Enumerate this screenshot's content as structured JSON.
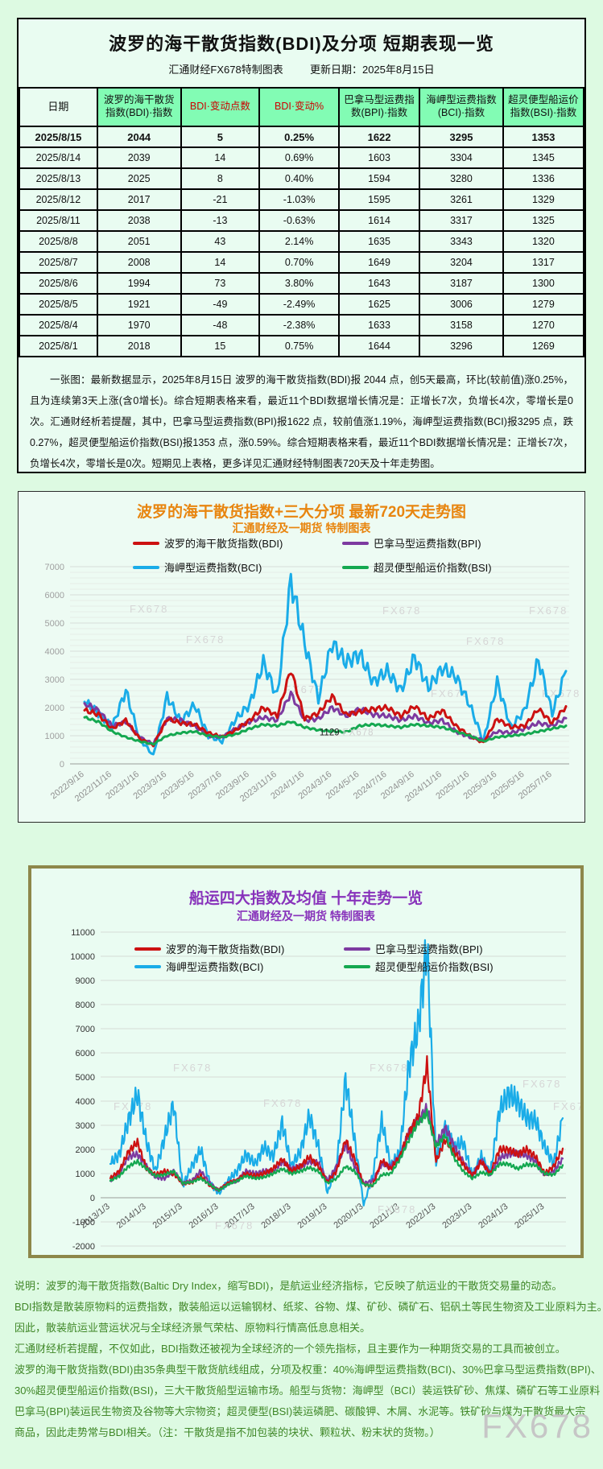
{
  "colors": {
    "page_bg": "#ddfae2",
    "panel_bg": "#e9fcf1",
    "header_green": "#82fcb4",
    "red_text": "#cc0000",
    "orange_title": "#e8850f",
    "purple_title": "#8833bb",
    "olive_border": "#8d874a",
    "footer_green": "#3f8727",
    "bdi": "#cc1111",
    "bpi": "#7d3aa0",
    "bci": "#1aace8",
    "bsi": "#14a850"
  },
  "report": {
    "title": "波罗的海干散货指数(BDI)及分项 短期表现一览",
    "source_label": "汇通财经FX678特制图表",
    "update_label": "更新日期：2025年8月15日",
    "table": {
      "headers": [
        "日期",
        "波罗的海干散货指数(BDI)·指数",
        "BDI·变动点数",
        "BDI·变动%",
        "巴拿马型运费指数(BPI)·指数",
        "海岬型运费指数(BCI)·指数",
        "超灵便型船运价指数(BSI)·指数"
      ],
      "red_header_indices": [
        2,
        3
      ],
      "rows": [
        [
          "2025/8/15",
          "2044",
          "5",
          "0.25%",
          "1622",
          "3295",
          "1353"
        ],
        [
          "2025/8/14",
          "2039",
          "14",
          "0.69%",
          "1603",
          "3304",
          "1345"
        ],
        [
          "2025/8/13",
          "2025",
          "8",
          "0.40%",
          "1594",
          "3280",
          "1336"
        ],
        [
          "2025/8/12",
          "2017",
          "-21",
          "-1.03%",
          "1595",
          "3261",
          "1329"
        ],
        [
          "2025/8/11",
          "2038",
          "-13",
          "-0.63%",
          "1614",
          "3317",
          "1325"
        ],
        [
          "2025/8/8",
          "2051",
          "43",
          "2.14%",
          "1635",
          "3343",
          "1320"
        ],
        [
          "2025/8/7",
          "2008",
          "14",
          "0.70%",
          "1649",
          "3204",
          "1317"
        ],
        [
          "2025/8/6",
          "1994",
          "73",
          "3.80%",
          "1643",
          "3187",
          "1300"
        ],
        [
          "2025/8/5",
          "1921",
          "-49",
          "-2.49%",
          "1625",
          "3006",
          "1279"
        ],
        [
          "2025/8/4",
          "1970",
          "-48",
          "-2.38%",
          "1633",
          "3158",
          "1270"
        ],
        [
          "2025/8/1",
          "2018",
          "15",
          "0.75%",
          "1644",
          "3296",
          "1269"
        ]
      ]
    },
    "summary": "一张图：最新数据显示，2025年8月15日 波罗的海干散货指数(BDI)报 2044 点，创5天最高，环比(较前值)涨0.25%，且为连续第3天上涨(含0增长)。综合短期表格来看，最近11个BDI数据增长情况是：正增长7次，负增长4次，零增长是0次。汇通财经析若提醒，其中，巴拿马型运费指数(BPI)报1622 点，较前值涨1.19%，海岬型运费指数(BCI)报3295 点，跌0.27%，超灵便型船运价指数(BSI)报1353 点，涨0.59%。综合短期表格来看，最近11个BDI数据增长情况是：正增长7次，负增长4次，零增长是0次。短期见上表格，更多详见汇通财经特制图表720天及十年走势图。"
  },
  "chart_data": [
    {
      "type": "line",
      "id": "chart720",
      "title": "波罗的海干散货指数+三大分项  最新720天走势图",
      "subtitle": "汇通财经及一期货 特制图表",
      "ylim": [
        0,
        7000
      ],
      "y_step": 1000,
      "grid": true,
      "legend_position": "top-inside",
      "watermark": "FX678",
      "x_tick_labels": [
        "2022/9/16",
        "2022/11/16",
        "2023/1/16",
        "2023/3/16",
        "2023/5/16",
        "2023/7/16",
        "2023/9/16",
        "2023/11/16",
        "2024/1/16",
        "2024/3/16",
        "2024/5/16",
        "2024/7/16",
        "2024/9/16",
        "2024/11/16",
        "2025/1/16",
        "2025/3/16",
        "2025/5/16",
        "2025/7/16"
      ],
      "tick_every": 2,
      "annotation": {
        "label": "1129",
        "series": "超灵便型船运价指数(BSI)",
        "index": 19,
        "value": 1129
      },
      "series": [
        {
          "name": "波罗的海干散货指数(BDI)",
          "color_key": "bdi",
          "values": [
            1900,
            1760,
            1250,
            1550,
            900,
            650,
            1600,
            1450,
            1400,
            1100,
            950,
            1200,
            1550,
            2000,
            1700,
            3350,
            1600,
            1800,
            2400,
            1750,
            1850,
            1950,
            2000,
            1700,
            2050,
            1600,
            1900,
            1350,
            1000,
            750,
            1600,
            1300,
            1350,
            1950,
            1450,
            2044
          ]
        },
        {
          "name": "巴拿马型运费指数(BPI)",
          "color_key": "bpi",
          "values": [
            2150,
            1900,
            1350,
            1500,
            950,
            700,
            1600,
            1550,
            1350,
            1000,
            950,
            1250,
            1500,
            1650,
            1550,
            2500,
            1550,
            1600,
            2000,
            1700,
            1950,
            1750,
            1700,
            1550,
            1700,
            1450,
            1550,
            1150,
            950,
            850,
            1150,
            1100,
            1250,
            1450,
            1350,
            1622
          ]
        },
        {
          "name": "海岬型运费指数(BCI)",
          "color_key": "bci",
          "values": [
            2200,
            1800,
            1300,
            2600,
            900,
            300,
            2400,
            1500,
            2100,
            1000,
            800,
            1600,
            2100,
            3600,
            2400,
            6500,
            4300,
            2300,
            4300,
            3600,
            3900,
            2900,
            3300,
            2600,
            3800,
            2700,
            3400,
            3100,
            2100,
            800,
            2900,
            1300,
            1900,
            3700,
            1800,
            3295
          ]
        },
        {
          "name": "超灵便型船运价指数(BSI)",
          "color_key": "bsi",
          "values": [
            1650,
            1500,
            1150,
            950,
            800,
            700,
            1000,
            1100,
            1150,
            1000,
            950,
            1050,
            1250,
            1400,
            1350,
            1500,
            1300,
            1200,
            1160,
            1129,
            1350,
            1400,
            1350,
            1300,
            1400,
            1350,
            1300,
            1150,
            1000,
            800,
            950,
            1000,
            1050,
            1150,
            1250,
            1353
          ]
        }
      ]
    },
    {
      "type": "line",
      "id": "chart10y",
      "title": "船运四大指数及均值 十年走势一览",
      "subtitle": "汇通财经及一期货 特制图表",
      "ylim": [
        -2000,
        11000
      ],
      "y_step": 1000,
      "grid": true,
      "legend_position": "top-inside",
      "watermark": "FX678",
      "x_tick_labels": [
        "2013/1/3",
        "2014/1/3",
        "2015/1/3",
        "2016/1/3",
        "2017/1/3",
        "2018/1/3",
        "2019/1/3",
        "2020/1/3",
        "2021/1/3",
        "2022/1/3",
        "2023/1/3",
        "2024/1/3",
        "2025/1/3"
      ],
      "tick_every": 4,
      "series": [
        {
          "name": "波罗的海干散货指数(BDI)",
          "color_key": "bdi",
          "values": [
            800,
            1100,
            1900,
            2300,
            1200,
            950,
            1100,
            1000,
            600,
            630,
            900,
            500,
            320,
            600,
            720,
            1000,
            900,
            1000,
            1200,
            1600,
            1100,
            1300,
            1700,
            1300,
            650,
            1100,
            2400,
            1600,
            550,
            500,
            1550,
            1200,
            1700,
            2700,
            3300,
            5500,
            1500,
            2400,
            1900,
            1400,
            900,
            1500,
            1000,
            2000,
            2000,
            1800,
            2000,
            1700,
            1000,
            1300,
            2044
          ]
        },
        {
          "name": "巴拿马型运费指数(BPI)",
          "color_key": "bpi",
          "values": [
            700,
            1050,
            1700,
            1800,
            1300,
            850,
            800,
            1100,
            600,
            700,
            1100,
            600,
            300,
            600,
            700,
            1100,
            1000,
            1100,
            1100,
            1500,
            1200,
            1300,
            1500,
            1450,
            700,
            1300,
            2200,
            1300,
            600,
            700,
            1400,
            1300,
            1700,
            2700,
            3200,
            3700,
            2200,
            2900,
            2150,
            1500,
            950,
            1550,
            1000,
            1650,
            1800,
            1850,
            1750,
            1500,
            950,
            1100,
            1622
          ]
        },
        {
          "name": "海岬型运费指数(BCI)",
          "color_key": "bci",
          "values": [
            1400,
            1800,
            3200,
            4300,
            2300,
            1100,
            2500,
            3900,
            500,
            1300,
            2000,
            600,
            160,
            700,
            1100,
            1800,
            1400,
            2100,
            1700,
            3100,
            1300,
            1900,
            3400,
            2100,
            200,
            1300,
            4900,
            2400,
            -300,
            900,
            3200,
            1300,
            1900,
            5500,
            7000,
            10400,
            1500,
            2900,
            2100,
            2300,
            900,
            1700,
            1000,
            3600,
            4300,
            4000,
            3300,
            3200,
            2100,
            1400,
            3295
          ]
        },
        {
          "name": "超灵便型船运价指数(BSI)",
          "color_key": "bsi",
          "values": [
            700,
            900,
            1300,
            1500,
            1200,
            900,
            950,
            1100,
            600,
            650,
            800,
            550,
            300,
            550,
            700,
            900,
            800,
            850,
            1000,
            1200,
            1000,
            1100,
            1250,
            1100,
            600,
            800,
            1300,
            1100,
            550,
            500,
            950,
            1000,
            1600,
            2400,
            3100,
            3500,
            2100,
            2600,
            1650,
            1100,
            800,
            1050,
            950,
            1400,
            1400,
            1200,
            1380,
            1350,
            1000,
            950,
            1353
          ]
        }
      ]
    }
  ],
  "footer": {
    "lines": [
      "说明：波罗的海干散货指数(Baltic Dry Index，缩写BDI)，是航运业经济指标，它反映了航运业的干散货交易量的动态。",
      "BDI指数是散装原物料的运费指数，散装船运以运输钢材、纸浆、谷物、煤、矿砂、磷矿石、铝矾土等民生物资及工业原料为主。",
      "因此，散装航运业营运状况与全球经济景气荣枯、原物料行情高低息息相关。",
      "汇通财经析若提醒，不仅如此，BDI指数还被视为全球经济的一个领先指标，且主要作为一种期货交易的工具而被创立。",
      "波罗的海干散货指数(BDI)由35条典型干散货航线组成，分项及权重：40%海岬型运费指数(BCI)、30%巴拿马型运费指数(BPI)、",
      "30%超灵便型船运价指数(BSI)，三大干散货船型运输市场。船型与货物：海岬型（BCI）装运铁矿砂、焦煤、磷矿石等工业原料",
      "巴拿马(BPI)装运民生物资及谷物等大宗物资；超灵便型(BSI)装运磷肥、碳酸钾、木屑、水泥等。铁矿砂与煤为干散货最大宗",
      "商品，因此走势常与BDI相关。（注：干散货是指不加包装的块状、颗粒状、粉末状的货物。）"
    ],
    "watermark_large": "FX678"
  }
}
